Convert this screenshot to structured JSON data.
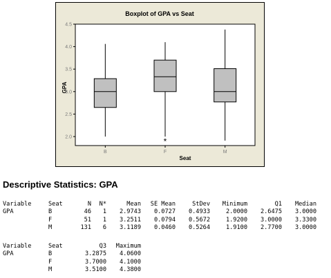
{
  "chart_data": {
    "type": "boxplot",
    "title": "Boxplot of GPA vs Seat",
    "xlabel": "Seat",
    "ylabel": "GPA",
    "categories": [
      "B",
      "F",
      "M"
    ],
    "ylim": [
      1.8,
      4.5
    ],
    "yticks": [
      "2.0",
      "2.5",
      "3.0",
      "3.5",
      "4.0",
      "4.5"
    ],
    "boxes": [
      {
        "category": "B",
        "whisker_low": 2.0,
        "q1": 2.6475,
        "median": 3.0,
        "q3": 3.2875,
        "whisker_high": 4.06,
        "outliers": []
      },
      {
        "category": "F",
        "whisker_low": 2.0,
        "q1": 3.0,
        "median": 3.33,
        "q3": 3.7,
        "whisker_high": 4.1,
        "outliers": [
          1.92
        ]
      },
      {
        "category": "M",
        "whisker_low": 1.91,
        "q1": 2.77,
        "median": 3.0,
        "q3": 3.51,
        "whisker_high": 4.38,
        "outliers": []
      }
    ],
    "grid": false,
    "outlier_marker": "*",
    "colors": {
      "frame_background": "#ece9d8",
      "plot_background": "#ffffff",
      "box_fill": "#c0c0c0",
      "stroke": "#000000",
      "tick_text": "#7a7a7a"
    }
  },
  "stats": {
    "heading": "Descriptive Statistics: GPA",
    "table1": {
      "headers": [
        "Variable",
        "Seat",
        "N",
        "N*",
        "Mean",
        "SE Mean",
        "StDev",
        "Minimum",
        "Q1",
        "Median"
      ],
      "rows": [
        [
          "GPA",
          "B",
          "46",
          "1",
          "2.9743",
          "0.0727",
          "0.4933",
          "2.0000",
          "2.6475",
          "3.0000"
        ],
        [
          "",
          "F",
          "51",
          "1",
          "3.2511",
          "0.0794",
          "0.5672",
          "1.9200",
          "3.0000",
          "3.3300"
        ],
        [
          "",
          "M",
          "131",
          "6",
          "3.1189",
          "0.0460",
          "0.5264",
          "1.9100",
          "2.7700",
          "3.0000"
        ]
      ]
    },
    "table2": {
      "headers": [
        "Variable",
        "Seat",
        "Q3",
        "Maximum"
      ],
      "rows": [
        [
          "GPA",
          "B",
          "3.2875",
          "4.0600"
        ],
        [
          "",
          "F",
          "3.7000",
          "4.1000"
        ],
        [
          "",
          "M",
          "3.5100",
          "4.3800"
        ]
      ]
    }
  }
}
